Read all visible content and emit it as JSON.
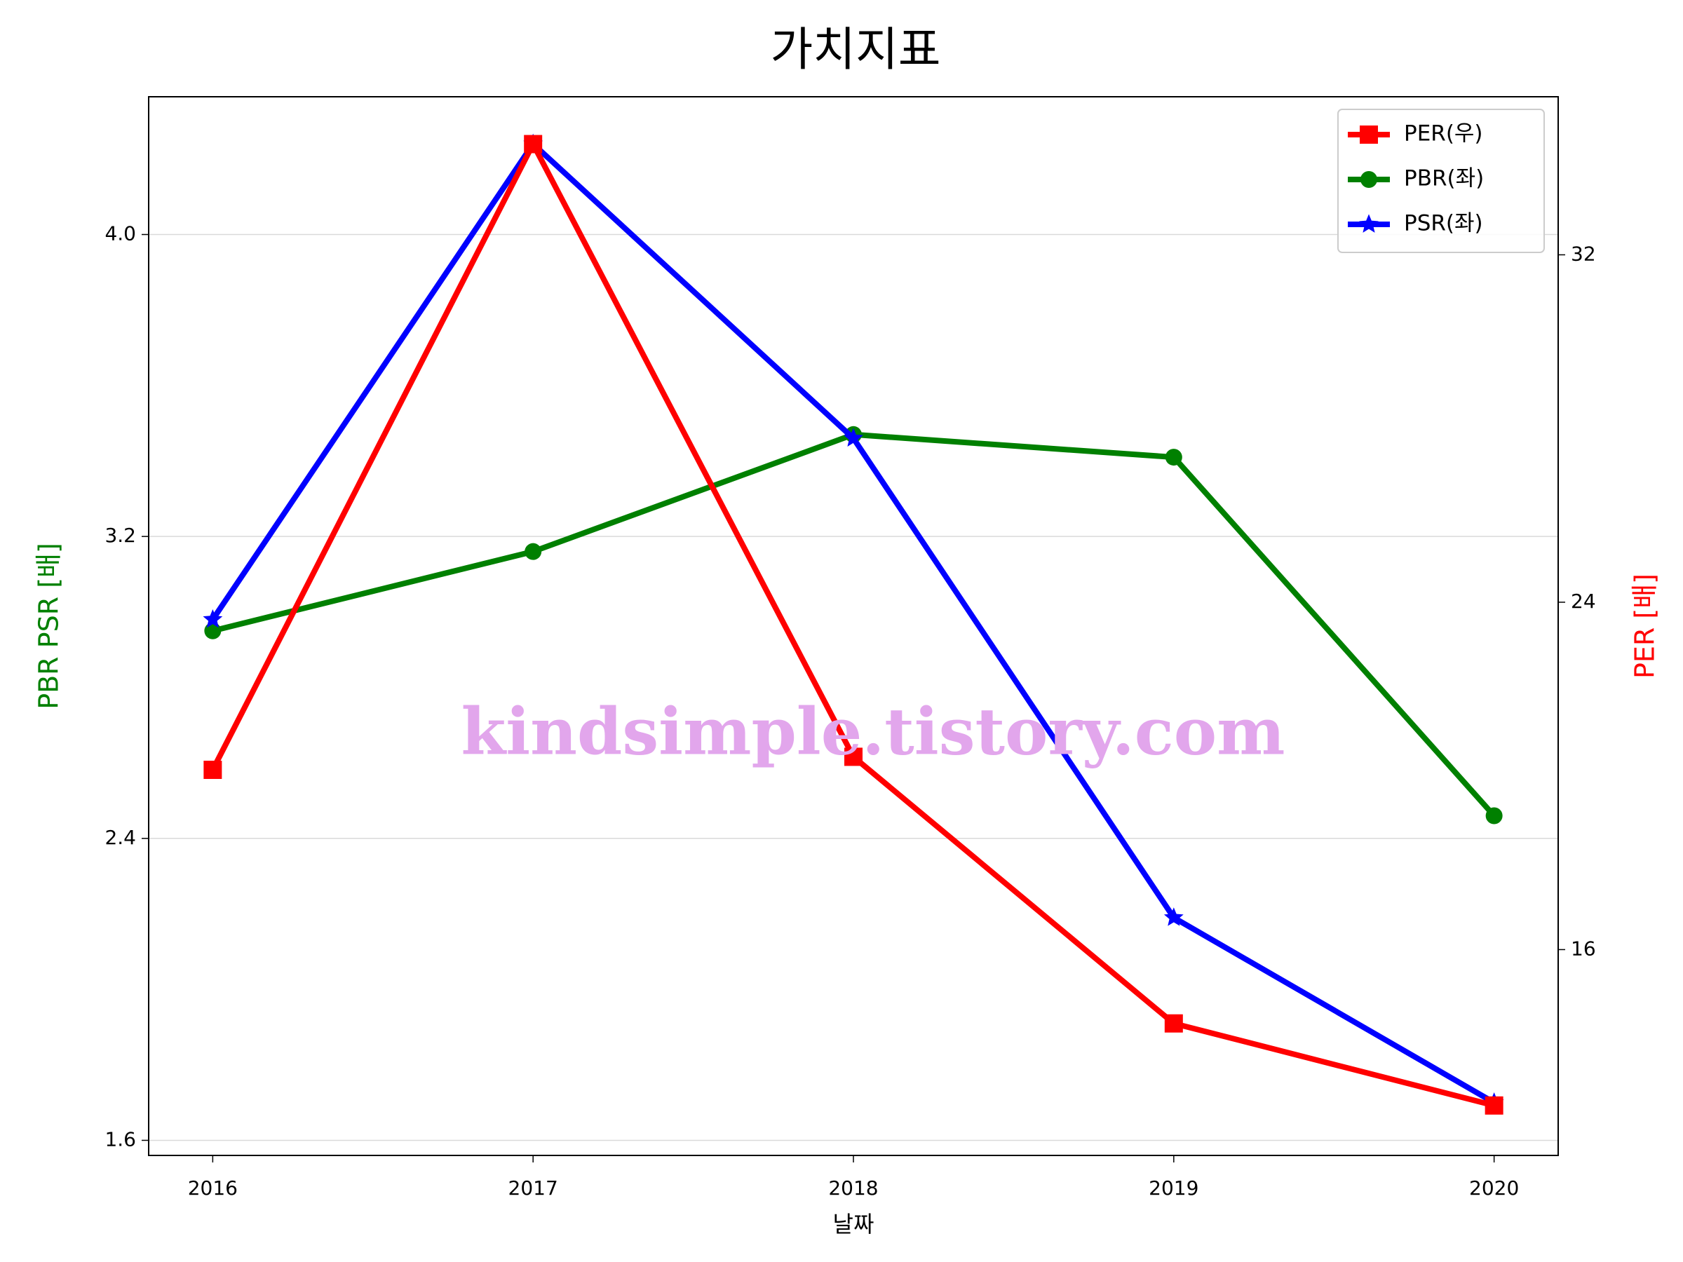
{
  "chart_data": {
    "type": "line",
    "title": "가치지표",
    "x": [
      2016,
      2017,
      2018,
      2019,
      2020
    ],
    "xlabel": "날짜",
    "ylabel": "PBR PSR [배]",
    "y2label": "PER [배]",
    "ylabel_color": "#008000",
    "y2label_color": "#ff0000",
    "xlim": [
      2015.8,
      2020.2
    ],
    "xticks": [
      2016,
      2017,
      2018,
      2019,
      2020
    ],
    "ylim": [
      1.56,
      4.365
    ],
    "yticks": [
      1.6,
      2.4,
      3.2,
      {
        "value": 4.0,
        "label": "4.0"
      }
    ],
    "y2lim": [
      11.26,
      35.64
    ],
    "y2ticks": [
      16,
      24,
      32
    ],
    "grid": true,
    "legend": "upper right",
    "watermark": "kindsimple.tistory.com",
    "series": [
      {
        "name": "PER(우)",
        "color": "#ff0000",
        "marker": "square",
        "axis": "y2",
        "values": [
          20.14,
          34.55,
          20.44,
          14.3,
          12.41
        ]
      },
      {
        "name": "PBR(좌)",
        "color": "#008000",
        "marker": "circle",
        "values": [
          2.95,
          3.16,
          3.47,
          3.41,
          2.46
        ]
      },
      {
        "name": "PSR(좌)",
        "color": "#0000ff",
        "marker": "star",
        "values": [
          2.98,
          4.24,
          3.46,
          2.19,
          1.7
        ]
      }
    ]
  }
}
